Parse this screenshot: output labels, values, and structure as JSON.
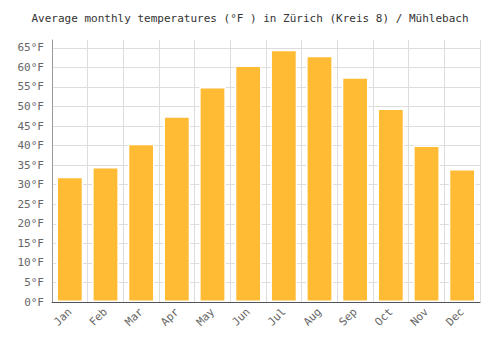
{
  "chart_data": {
    "type": "bar",
    "title": "Average monthly temperatures (°F ) in Zürich (Kreis 8) / Mühlebach",
    "categories": [
      "Jan",
      "Feb",
      "Mar",
      "Apr",
      "May",
      "Jun",
      "Jul",
      "Aug",
      "Sep",
      "Oct",
      "Nov",
      "Dec"
    ],
    "values": [
      32,
      34.5,
      40.5,
      47.5,
      55,
      60.5,
      64.5,
      63,
      57.5,
      49.5,
      40,
      34
    ],
    "color": "#FFBB33",
    "ylim": [
      0,
      67
    ],
    "yticks": [
      {
        "value": 0,
        "label": "0°F"
      },
      {
        "value": 5,
        "label": "5°F"
      },
      {
        "value": 10,
        "label": "10°F"
      },
      {
        "value": 15,
        "label": "15°F"
      },
      {
        "value": 20,
        "label": "20°F"
      },
      {
        "value": 25,
        "label": "25°F"
      },
      {
        "value": 30,
        "label": "30°F"
      },
      {
        "value": 35,
        "label": "35°F"
      },
      {
        "value": 40,
        "label": "40°F"
      },
      {
        "value": 45,
        "label": "45°F"
      },
      {
        "value": 50,
        "label": "50°F"
      },
      {
        "value": 55,
        "label": "55°F"
      },
      {
        "value": 60,
        "label": "60°F"
      },
      {
        "value": 65,
        "label": "65°F"
      }
    ],
    "grid": true
  }
}
